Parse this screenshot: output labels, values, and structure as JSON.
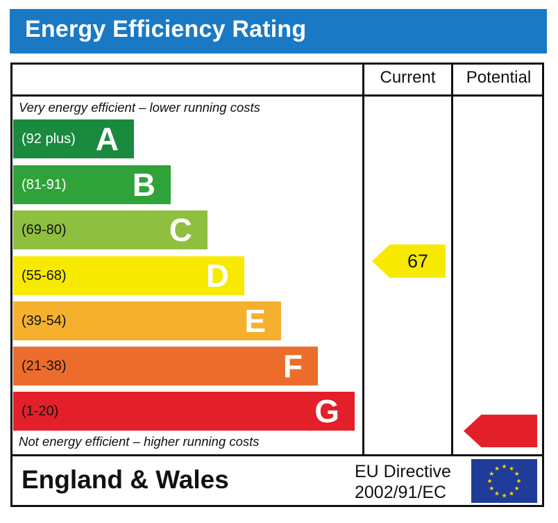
{
  "title": "Energy Efficiency Rating",
  "columns": {
    "current": "Current",
    "potential": "Potential"
  },
  "captions": {
    "top": "Very energy efficient – lower running costs",
    "bottom": "Not energy efficient – higher running costs"
  },
  "footer": {
    "country": "England & Wales",
    "directive_line1": "EU Directive",
    "directive_line2": "2002/91/EC"
  },
  "colors": {
    "title_bar": "#1a79c4",
    "eu_flag": "#1f3c99",
    "eu_star": "#f5d800"
  },
  "chart_data": {
    "type": "bar",
    "categories": [
      "A",
      "B",
      "C",
      "D",
      "E",
      "F",
      "G"
    ],
    "bands": [
      {
        "letter": "A",
        "range": "(92 plus)",
        "color": "#1a8a3e",
        "text_color": "#ffffff"
      },
      {
        "letter": "B",
        "range": "(81-91)",
        "color": "#2fa339",
        "text_color": "#ffffff"
      },
      {
        "letter": "C",
        "range": "(69-80)",
        "color": "#8ebf3f",
        "text_color": "#111111"
      },
      {
        "letter": "D",
        "range": "(55-68)",
        "color": "#f7ea00",
        "text_color": "#111111"
      },
      {
        "letter": "E",
        "range": "(39-54)",
        "color": "#f5b12e",
        "text_color": "#111111"
      },
      {
        "letter": "F",
        "range": "(21-38)",
        "color": "#ec6d2b",
        "text_color": "#111111"
      },
      {
        "letter": "G",
        "range": "(1-20)",
        "color": "#e3202a",
        "text_color": "#111111"
      }
    ],
    "current": {
      "value": 67,
      "label": "67",
      "band": "D",
      "color": "#f7ea00"
    },
    "potential": {
      "value": null,
      "label": "",
      "band": "G",
      "color": "#e3202a"
    }
  }
}
